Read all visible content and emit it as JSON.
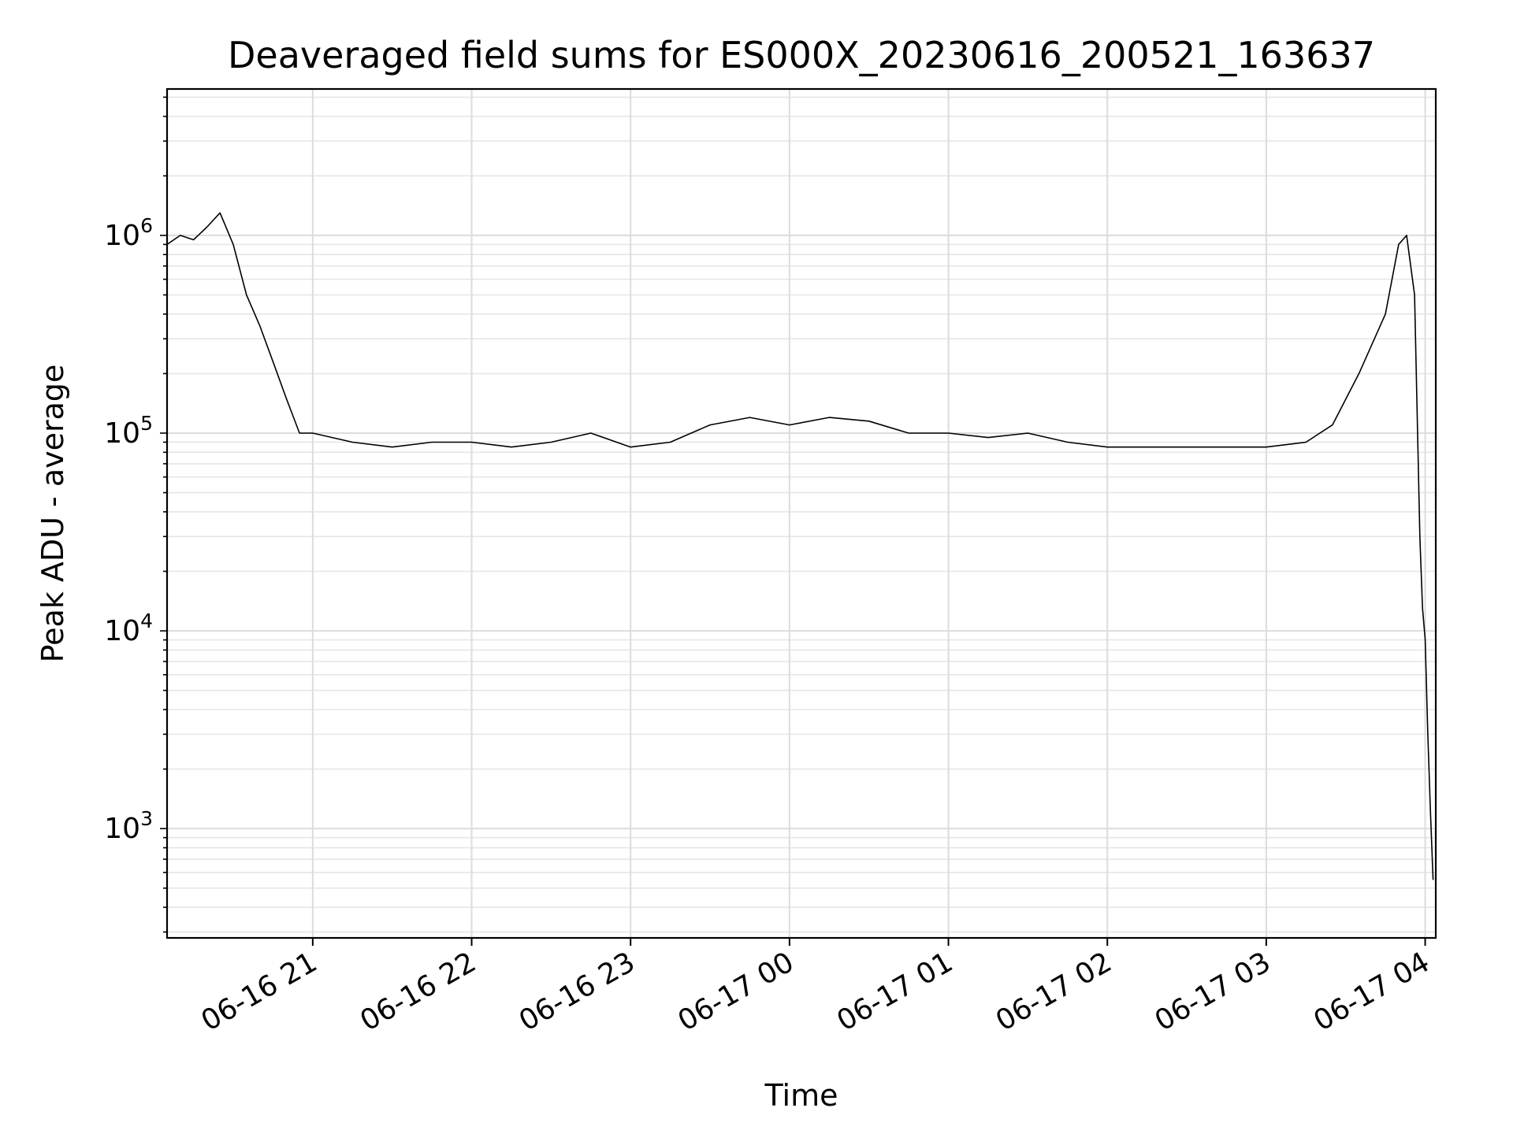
{
  "chart_data": {
    "type": "line",
    "title": "Deaveraged field sums for ES000X_20230616_200521_163637",
    "xlabel": "Time",
    "ylabel": "Peak ADU - average",
    "yscale": "log",
    "ylim": [
      280,
      5500000
    ],
    "xlim": [
      "2023-06-16 20:05",
      "2023-06-17 04:04"
    ],
    "grid": true,
    "x_ticks": [
      {
        "t": "2023-06-16 21:00",
        "label": "06-16 21"
      },
      {
        "t": "2023-06-16 22:00",
        "label": "06-16 22"
      },
      {
        "t": "2023-06-16 23:00",
        "label": "06-16 23"
      },
      {
        "t": "2023-06-17 00:00",
        "label": "06-17 00"
      },
      {
        "t": "2023-06-17 01:00",
        "label": "06-17 01"
      },
      {
        "t": "2023-06-17 02:00",
        "label": "06-17 02"
      },
      {
        "t": "2023-06-17 03:00",
        "label": "06-17 03"
      },
      {
        "t": "2023-06-17 04:00",
        "label": "06-17 04"
      }
    ],
    "y_ticks": [
      {
        "value": 1000,
        "base": "10",
        "exp": "3"
      },
      {
        "value": 10000,
        "base": "10",
        "exp": "4"
      },
      {
        "value": 100000,
        "base": "10",
        "exp": "5"
      },
      {
        "value": 1000000,
        "base": "10",
        "exp": "6"
      }
    ],
    "series": [
      {
        "color": "#000000",
        "x": [
          "2023-06-16 20:05",
          "2023-06-16 20:10",
          "2023-06-16 20:15",
          "2023-06-16 20:20",
          "2023-06-16 20:25",
          "2023-06-16 20:30",
          "2023-06-16 20:35",
          "2023-06-16 20:40",
          "2023-06-16 20:45",
          "2023-06-16 20:50",
          "2023-06-16 20:55",
          "2023-06-16 21:00",
          "2023-06-16 21:15",
          "2023-06-16 21:30",
          "2023-06-16 21:45",
          "2023-06-16 22:00",
          "2023-06-16 22:15",
          "2023-06-16 22:30",
          "2023-06-16 22:45",
          "2023-06-16 23:00",
          "2023-06-16 23:15",
          "2023-06-16 23:30",
          "2023-06-16 23:45",
          "2023-06-17 00:00",
          "2023-06-17 00:15",
          "2023-06-17 00:30",
          "2023-06-17 00:45",
          "2023-06-17 01:00",
          "2023-06-17 01:15",
          "2023-06-17 01:30",
          "2023-06-17 01:45",
          "2023-06-17 02:00",
          "2023-06-17 02:15",
          "2023-06-17 02:30",
          "2023-06-17 02:45",
          "2023-06-17 03:00",
          "2023-06-17 03:15",
          "2023-06-17 03:25",
          "2023-06-17 03:35",
          "2023-06-17 03:45",
          "2023-06-17 03:50",
          "2023-06-17 03:53",
          "2023-06-17 03:56",
          "2023-06-17 03:58",
          "2023-06-17 03:59",
          "2023-06-17 04:00",
          "2023-06-17 04:01",
          "2023-06-17 04:02",
          "2023-06-17 04:03"
        ],
        "y": [
          900000,
          1000000,
          950000,
          1100000,
          1300000,
          900000,
          500000,
          350000,
          230000,
          150000,
          100000,
          100000,
          90000,
          85000,
          90000,
          90000,
          85000,
          90000,
          100000,
          85000,
          90000,
          110000,
          120000,
          110000,
          120000,
          115000,
          100000,
          100000,
          95000,
          100000,
          90000,
          85000,
          85000,
          85000,
          85000,
          85000,
          90000,
          110000,
          200000,
          400000,
          900000,
          1000000,
          500000,
          30000,
          13000,
          9000,
          3000,
          1200,
          550
        ]
      }
    ]
  }
}
